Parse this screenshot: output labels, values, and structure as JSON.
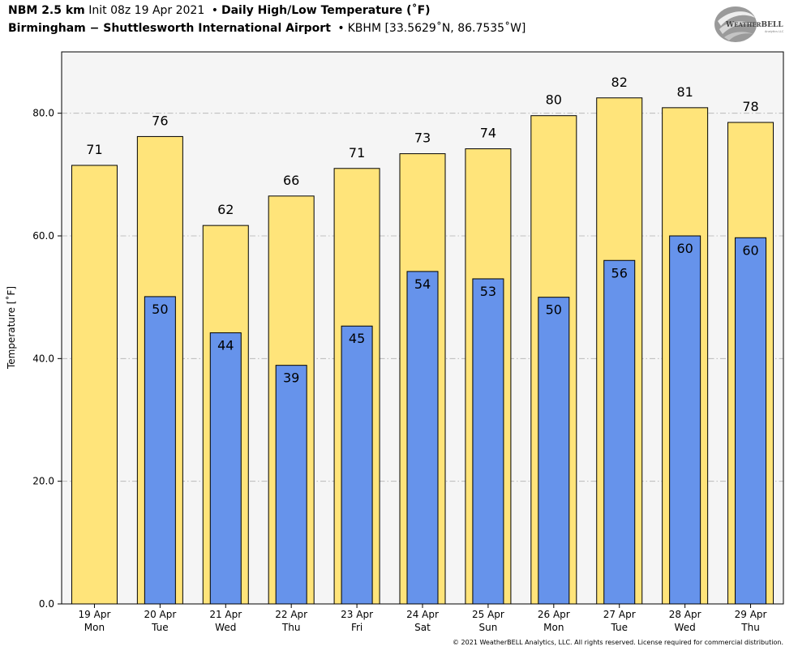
{
  "header": {
    "model": "NBM 2.5 km",
    "init": "Init 08z 19 Apr 2021",
    "product": "Daily High/Low Temperature (˚F)",
    "location": "Birmingham − Shuttlesworth International Airport",
    "station": "KBHM [33.5629˚N, 86.7535˚W]",
    "separator": "•"
  },
  "logo": {
    "text": "WeatherBELL",
    "subtext": "Analytics LLC",
    "icon": "globe-swirl-icon"
  },
  "footer": {
    "copyright": "© 2021 WeatherBELL Analytics, LLC. All rights reserved. License required for commercial distribution."
  },
  "chart_data": {
    "type": "bar",
    "ylabel": "Temperature [˚F]",
    "ylim": [
      0,
      90
    ],
    "yticks": [
      0,
      20,
      40,
      60,
      80
    ],
    "ytick_labels": [
      "0.0",
      "20.0",
      "40.0",
      "60.0",
      "80.0"
    ],
    "grid": "horizontal dashed",
    "categories": [
      {
        "date": "19 Apr",
        "day": "Mon"
      },
      {
        "date": "20 Apr",
        "day": "Tue"
      },
      {
        "date": "21 Apr",
        "day": "Wed"
      },
      {
        "date": "22 Apr",
        "day": "Thu"
      },
      {
        "date": "23 Apr",
        "day": "Fri"
      },
      {
        "date": "24 Apr",
        "day": "Sat"
      },
      {
        "date": "25 Apr",
        "day": "Sun"
      },
      {
        "date": "26 Apr",
        "day": "Mon"
      },
      {
        "date": "27 Apr",
        "day": "Tue"
      },
      {
        "date": "28 Apr",
        "day": "Wed"
      },
      {
        "date": "29 Apr",
        "day": "Thu"
      }
    ],
    "series": [
      {
        "values": [
          71.5,
          76.2,
          61.7,
          66.5,
          71.0,
          73.4,
          74.2,
          79.6,
          82.5,
          80.9,
          78.5
        ],
        "labels": [
          "71",
          "76",
          "62",
          "66",
          "71",
          "73",
          "74",
          "80",
          "82",
          "81",
          "78"
        ],
        "color": "#ffe47a"
      },
      {
        "values": [
          null,
          50.1,
          44.2,
          38.9,
          45.3,
          54.2,
          53.0,
          50.0,
          56.0,
          60.0,
          59.7
        ],
        "labels": [
          null,
          "50",
          "44",
          "39",
          "45",
          "54",
          "53",
          "50",
          "56",
          "60",
          "60"
        ],
        "color": "#6693eb"
      }
    ],
    "plot_background": "#f5f5f5"
  }
}
